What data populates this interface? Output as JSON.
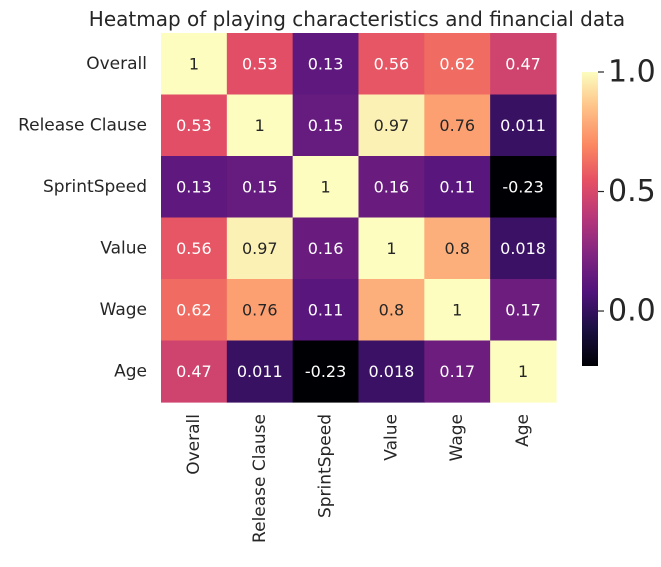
{
  "chart_data": {
    "type": "heatmap",
    "title": "Heatmap of playing characteristics and financial data",
    "xlabel": "",
    "ylabel": "",
    "row_labels": [
      "Overall",
      "Release Clause",
      "SprintSpeed",
      "Value",
      "Wage",
      "Age"
    ],
    "col_labels": [
      "Overall",
      "Release Clause",
      "SprintSpeed",
      "Value",
      "Wage",
      "Age"
    ],
    "values": [
      [
        1,
        0.53,
        0.13,
        0.56,
        0.62,
        0.47
      ],
      [
        0.53,
        1,
        0.15,
        0.97,
        0.76,
        0.011
      ],
      [
        0.13,
        0.15,
        1,
        0.16,
        0.11,
        -0.23
      ],
      [
        0.56,
        0.97,
        0.16,
        1,
        0.8,
        0.018
      ],
      [
        0.62,
        0.76,
        0.11,
        0.8,
        1,
        0.17
      ],
      [
        0.47,
        0.011,
        -0.23,
        0.018,
        0.17,
        1
      ]
    ],
    "annotations": [
      [
        "1",
        "0.53",
        "0.13",
        "0.56",
        "0.62",
        "0.47"
      ],
      [
        "0.53",
        "1",
        "0.15",
        "0.97",
        "0.76",
        "0.011"
      ],
      [
        "0.13",
        "0.15",
        "1",
        "0.16",
        "0.11",
        "-0.23"
      ],
      [
        "0.56",
        "0.97",
        "0.16",
        "1",
        "0.8",
        "0.018"
      ],
      [
        "0.62",
        "0.76",
        "0.11",
        "0.8",
        "1",
        "0.17"
      ],
      [
        "0.47",
        "0.011",
        "-0.23",
        "0.018",
        "0.17",
        "1"
      ]
    ],
    "colormap": "magma",
    "vmin": -0.23,
    "vmax": 1,
    "colorbar_ticks": [
      {
        "value": 1.0,
        "label": "1.0"
      },
      {
        "value": 0.5,
        "label": "0.5"
      },
      {
        "value": 0.0,
        "label": "0.0"
      }
    ],
    "grid": false,
    "legend": "colorbar-right"
  }
}
